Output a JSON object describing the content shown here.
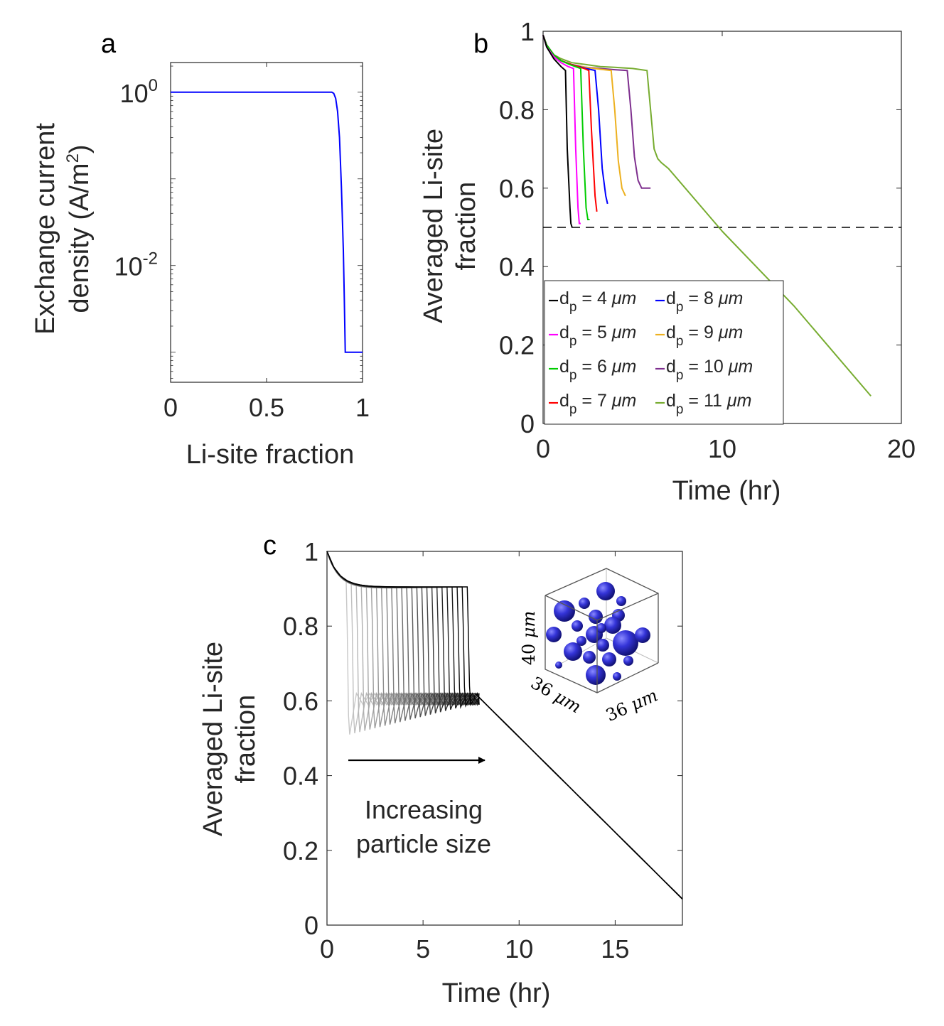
{
  "panels": {
    "a": "a",
    "b": "b",
    "c": "c"
  },
  "chart_data": [
    {
      "panel": "a",
      "type": "line",
      "xlabel": "Li-site fraction",
      "ylabel_line1": "Exchange current",
      "ylabel_line2": "density (A/m",
      "ylabel_sup": "2",
      "ylabel_end": ")",
      "xlim": [
        0,
        1
      ],
      "ylim": [
        0.00045,
        2.2
      ],
      "yscale": "log",
      "xticks": [
        0,
        0.5,
        1
      ],
      "xtick_labels": [
        "0",
        "0.5",
        "1"
      ],
      "yticks": [
        1,
        0.01
      ],
      "ytick_labels": [
        {
          "base": "10",
          "exp": "0"
        },
        {
          "base": "10",
          "exp": "-2"
        }
      ],
      "grid": false,
      "series": [
        {
          "color": "#0000ff",
          "x": [
            0,
            0.5,
            0.84,
            0.85,
            0.86,
            0.87,
            0.88,
            0.89,
            0.9,
            0.905,
            0.91,
            1.0
          ],
          "y": [
            1,
            1,
            1,
            0.97,
            0.85,
            0.6,
            0.3,
            0.08,
            0.015,
            0.004,
            0.001,
            0.001
          ]
        }
      ]
    },
    {
      "panel": "b",
      "type": "line",
      "xlabel": "Time (hr)",
      "ylabel_line1": "Averaged Li-site",
      "ylabel_line2": "fraction",
      "xlim": [
        0,
        20
      ],
      "ylim": [
        0,
        1
      ],
      "xticks": [
        0,
        10,
        20
      ],
      "yticks": [
        0,
        0.2,
        0.4,
        0.6,
        0.8,
        1
      ],
      "ytick_labels": [
        "0",
        "0.2",
        "0.4",
        "0.6",
        "0.8",
        "1"
      ],
      "grid": false,
      "reference_line": {
        "y": 0.5,
        "style": "dashed",
        "color": "#000000"
      },
      "legend_position": "bottom-left",
      "legend_units": "μm",
      "series": [
        {
          "name": "d",
          "sub": "p",
          "value": "4",
          "color": "#000000",
          "x": [
            0,
            0.2,
            0.6,
            1.0,
            1.25,
            1.35,
            1.5,
            1.55,
            1.62
          ],
          "y": [
            0.99,
            0.96,
            0.93,
            0.91,
            0.9,
            0.7,
            0.55,
            0.51,
            0.5
          ]
        },
        {
          "name": "d",
          "sub": "p",
          "value": "5",
          "color": "#ff00ff",
          "x": [
            0,
            0.2,
            0.6,
            1.0,
            1.4,
            1.7,
            1.82,
            1.95,
            2.02,
            2.1
          ],
          "y": [
            0.99,
            0.96,
            0.935,
            0.92,
            0.91,
            0.905,
            0.7,
            0.55,
            0.51,
            0.51
          ]
        },
        {
          "name": "d",
          "sub": "p",
          "value": "6",
          "color": "#00cc00",
          "x": [
            0,
            0.2,
            0.6,
            1.0,
            1.5,
            2.1,
            2.25,
            2.4,
            2.5,
            2.6
          ],
          "y": [
            0.99,
            0.965,
            0.94,
            0.925,
            0.915,
            0.905,
            0.7,
            0.55,
            0.52,
            0.52
          ]
        },
        {
          "name": "d",
          "sub": "p",
          "value": "7",
          "color": "#ff0000",
          "x": [
            0,
            0.2,
            0.6,
            1.0,
            1.6,
            2.3,
            2.55,
            2.7,
            2.9,
            3.0
          ],
          "y": [
            0.99,
            0.965,
            0.94,
            0.925,
            0.915,
            0.905,
            0.9,
            0.75,
            0.58,
            0.54
          ]
        },
        {
          "name": "d",
          "sub": "p",
          "value": "8",
          "color": "#0000ff",
          "x": [
            0,
            0.2,
            0.6,
            1.0,
            1.6,
            2.4,
            2.9,
            3.1,
            3.3,
            3.5,
            3.6
          ],
          "y": [
            0.99,
            0.965,
            0.94,
            0.925,
            0.915,
            0.905,
            0.9,
            0.8,
            0.65,
            0.58,
            0.56
          ]
        },
        {
          "name": "d",
          "sub": "p",
          "value": "9",
          "color": "#edb120",
          "x": [
            0,
            0.2,
            0.6,
            1.0,
            1.6,
            2.4,
            3.2,
            3.8,
            4.0,
            4.2,
            4.4,
            4.6
          ],
          "y": [
            0.99,
            0.965,
            0.94,
            0.925,
            0.915,
            0.908,
            0.903,
            0.9,
            0.8,
            0.67,
            0.6,
            0.58
          ]
        },
        {
          "name": "d",
          "sub": "p",
          "value": "10",
          "color": "#7e2f8e",
          "x": [
            0,
            0.2,
            0.6,
            1.0,
            1.6,
            2.4,
            3.2,
            4.0,
            4.7,
            4.9,
            5.1,
            5.3,
            5.5,
            5.8,
            6.0
          ],
          "y": [
            0.99,
            0.965,
            0.94,
            0.925,
            0.915,
            0.908,
            0.905,
            0.902,
            0.9,
            0.8,
            0.68,
            0.62,
            0.6,
            0.6,
            0.6
          ]
        },
        {
          "name": "d",
          "sub": "p",
          "value": "11",
          "color": "#77ac30",
          "x": [
            0,
            0.2,
            0.6,
            1.0,
            1.6,
            2.4,
            3.2,
            4.0,
            5.0,
            5.8,
            6.0,
            6.2,
            6.4,
            6.6,
            7.0,
            10.0,
            14.0,
            18.3
          ],
          "y": [
            0.99,
            0.965,
            0.94,
            0.93,
            0.92,
            0.915,
            0.91,
            0.908,
            0.905,
            0.9,
            0.8,
            0.7,
            0.675,
            0.665,
            0.65,
            0.49,
            0.3,
            0.07
          ]
        }
      ]
    },
    {
      "panel": "c",
      "type": "line",
      "xlabel": "Time (hr)",
      "ylabel_line1": "Averaged Li-site",
      "ylabel_line2": "fraction",
      "xlim": [
        0,
        18.5
      ],
      "ylim": [
        0,
        1
      ],
      "xticks": [
        0,
        5,
        10,
        15
      ],
      "yticks": [
        0,
        0.2,
        0.4,
        0.6,
        0.8,
        1
      ],
      "ytick_labels": [
        "0",
        "0.2",
        "0.4",
        "0.6",
        "0.8",
        "1"
      ],
      "grid": false,
      "series_count": 25,
      "drop_times_start": 1.0,
      "drop_times_end": 7.3,
      "color_light": "#c8c8c8",
      "color_dark": "#000000",
      "annotation_line1": "Increasing",
      "annotation_line2": "particle size",
      "end_point": {
        "x": 18.5,
        "y": 0.07
      },
      "inset": {
        "label_height": "40",
        "label_depth": "36",
        "label_width": "36",
        "unit": "μm",
        "sphere_color": "#2a2acc"
      }
    }
  ]
}
